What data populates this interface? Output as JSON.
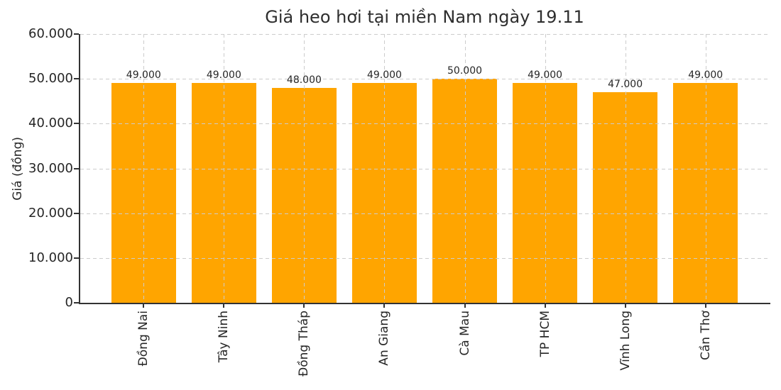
{
  "chart_data": {
    "type": "bar",
    "title": "Giá heo hơi tại miền Nam ngày 19.11",
    "xlabel": "",
    "ylabel": "Giá (đồng)",
    "categories": [
      "Đồng Nai",
      "Tây Ninh",
      "Đồng Tháp",
      "An Giang",
      "Cà Mau",
      "TP HCM",
      "Vĩnh Long",
      "Cần Thơ"
    ],
    "values": [
      49000,
      49000,
      48000,
      49000,
      50000,
      49000,
      47000,
      49000
    ],
    "value_labels": [
      "49.000",
      "49.000",
      "48.000",
      "49.000",
      "50.000",
      "49.000",
      "47.000",
      "49.000"
    ],
    "ylim": [
      0,
      60000
    ],
    "yticks": [
      0,
      10000,
      20000,
      30000,
      40000,
      50000,
      60000
    ],
    "ytick_labels": [
      "0",
      "10.000",
      "20.000",
      "30.000",
      "40.000",
      "50.000",
      "60.000"
    ],
    "bar_color": "#FFA500",
    "grid": "dashed, both axes, drawn above bars",
    "grid_color": "#cccccc",
    "spine_color": "#333333",
    "text_color": "#262626",
    "legend": "none",
    "x_tick_rotation": 90
  }
}
